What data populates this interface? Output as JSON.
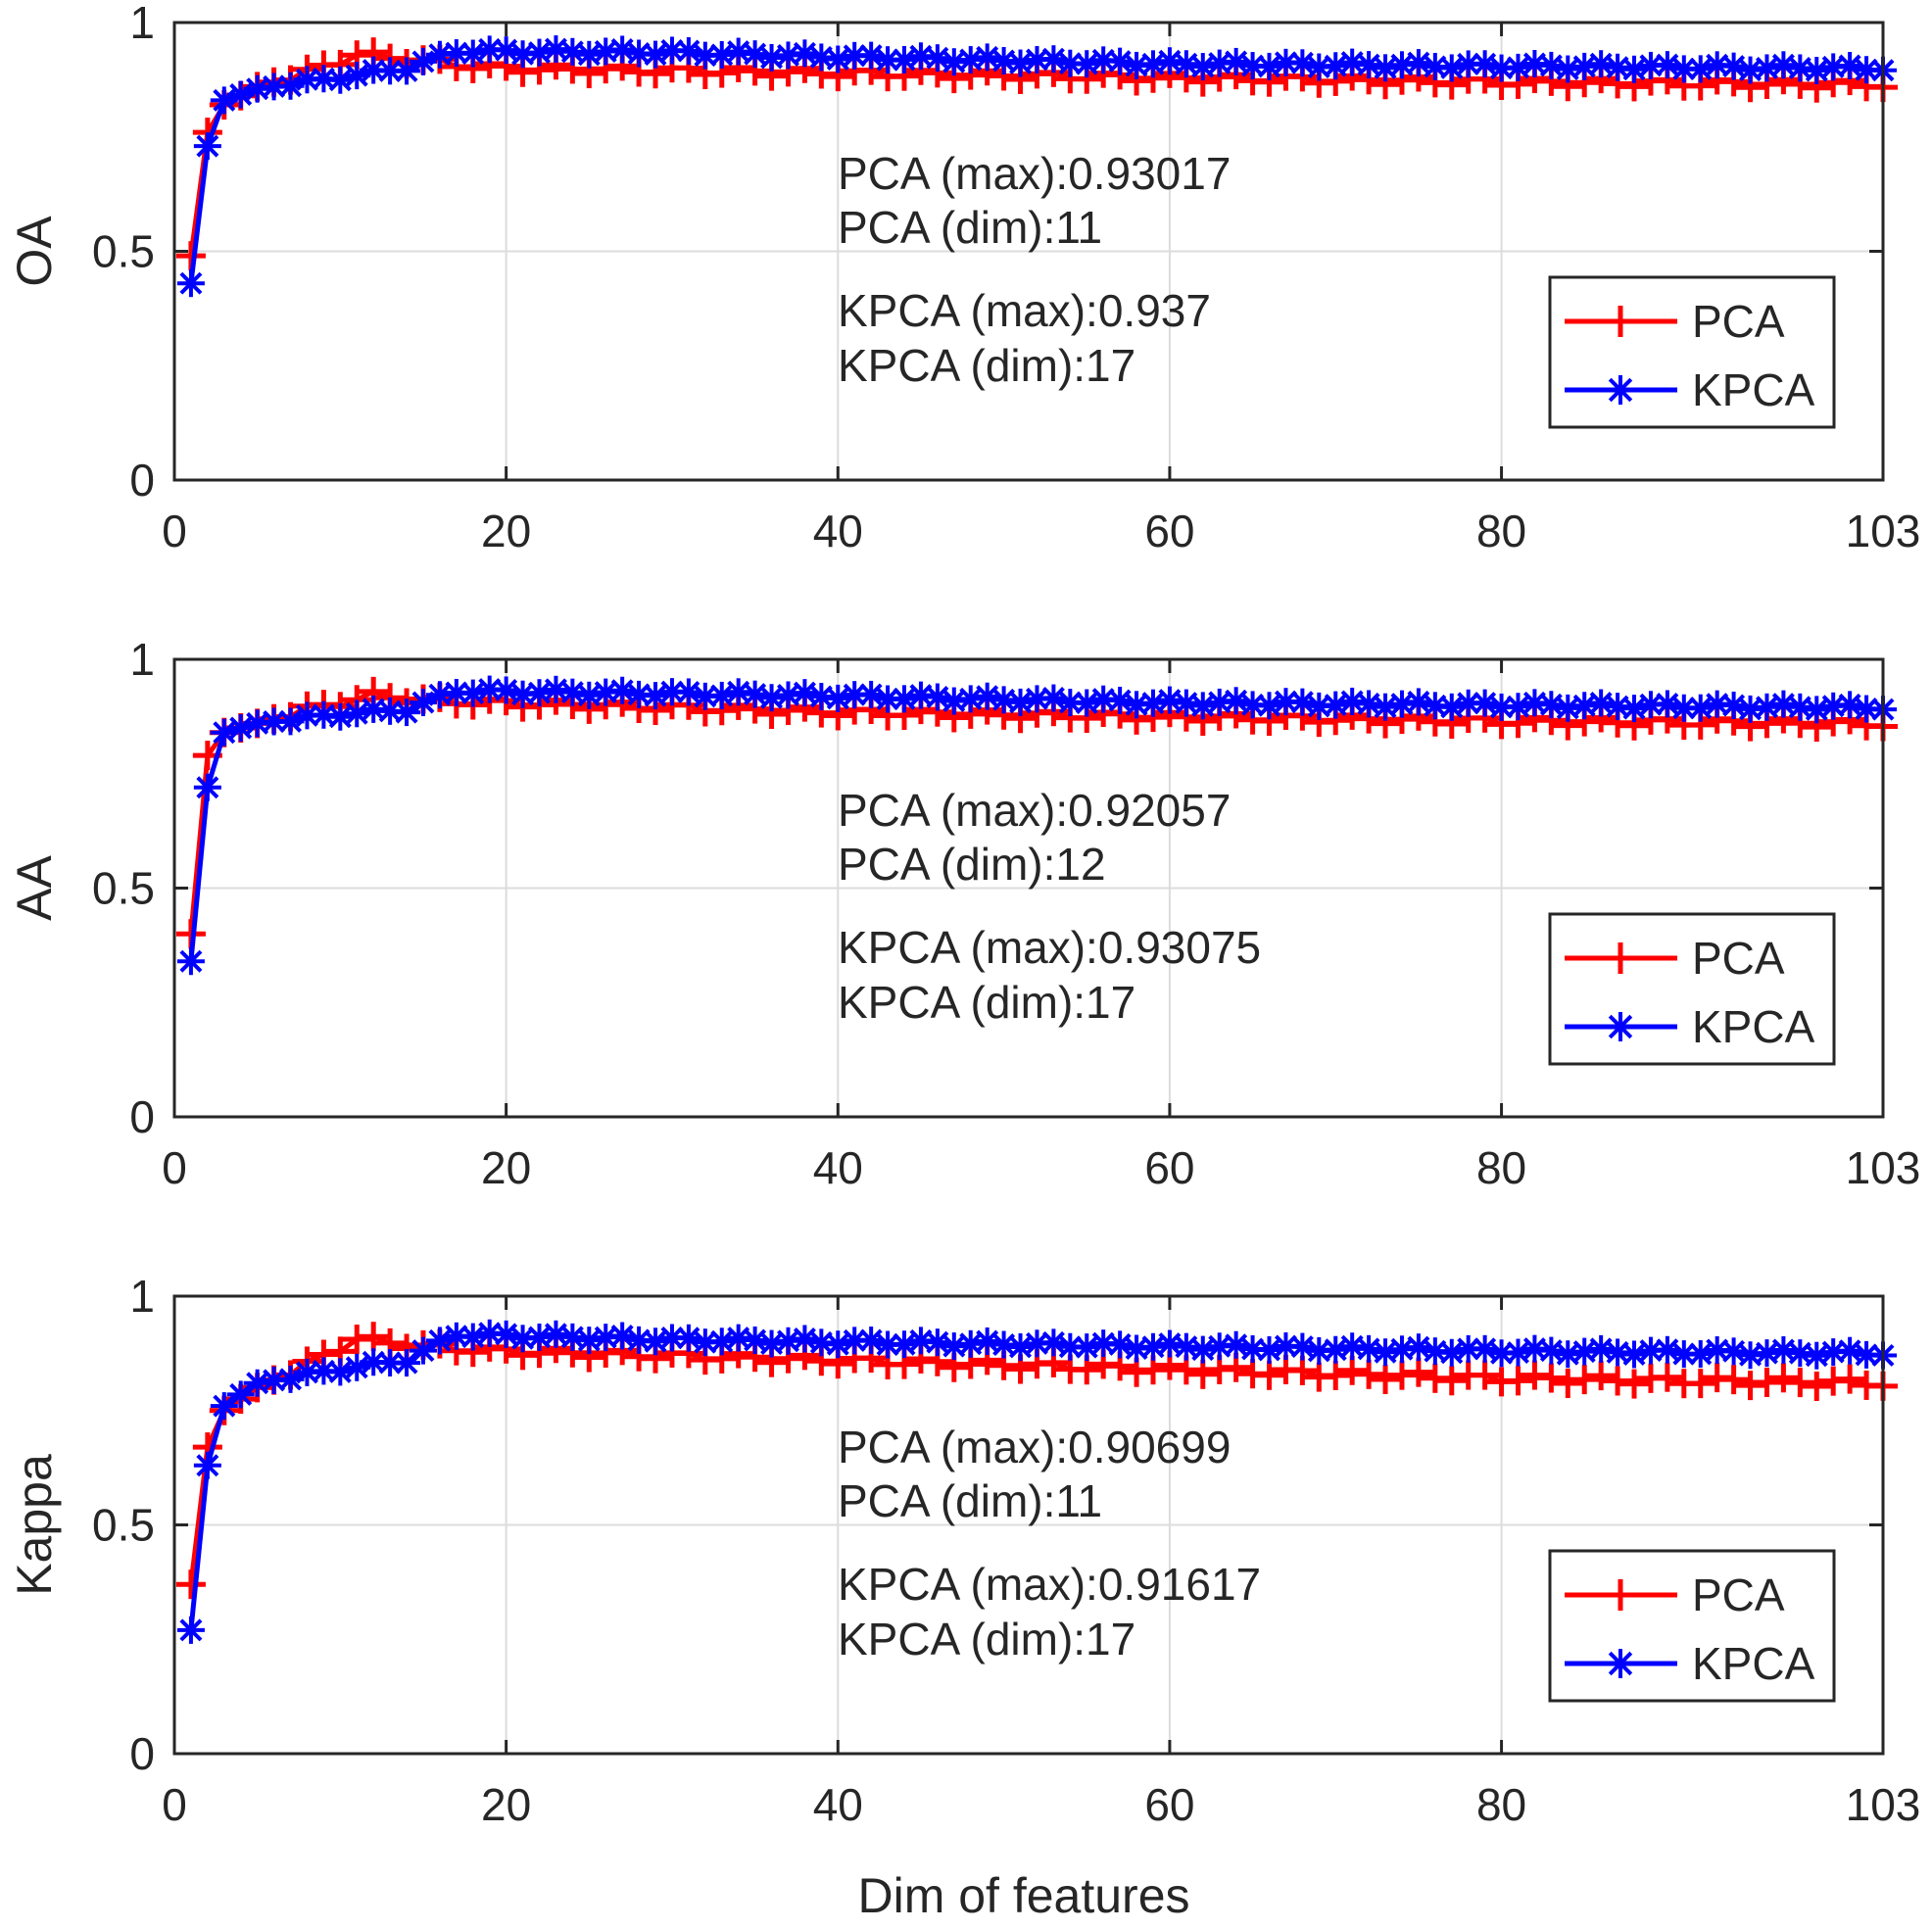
{
  "figure": {
    "xlabel": "Dim of features"
  },
  "colors": {
    "pca": "#ff0000",
    "kpca": "#0000ff",
    "grid": "#dcdcdc",
    "axis": "#262626"
  },
  "chart_data": [
    {
      "type": "line",
      "ylabel": "OA",
      "xlim": [
        0,
        103
      ],
      "ylim": [
        0,
        1
      ],
      "xticks": [
        0,
        20,
        40,
        60,
        80,
        103
      ],
      "yticks": [
        0,
        0.5,
        1
      ],
      "ytick_labels": [
        "0",
        "0.5",
        "1"
      ],
      "grid": true,
      "legend_position": "center-right",
      "annotations": [
        [
          "PCA (max):0.93017",
          "PCA (dim):11"
        ],
        [
          "KPCA (max):0.937",
          "KPCA (dim):17"
        ]
      ],
      "series": [
        {
          "name": "PCA",
          "marker": "plus",
          "keypoints": [
            [
              1,
              0.49
            ],
            [
              2,
              0.76
            ],
            [
              3,
              0.82
            ],
            [
              5,
              0.86
            ],
            [
              8,
              0.89
            ],
            [
              11,
              0.93017
            ],
            [
              15,
              0.915
            ],
            [
              20,
              0.9
            ],
            [
              40,
              0.89
            ],
            [
              60,
              0.88
            ],
            [
              80,
              0.87
            ],
            [
              103,
              0.865
            ]
          ]
        },
        {
          "name": "KPCA",
          "marker": "asterisk",
          "keypoints": [
            [
              1,
              0.43
            ],
            [
              2,
              0.73
            ],
            [
              3,
              0.83
            ],
            [
              5,
              0.855
            ],
            [
              10,
              0.88
            ],
            [
              14,
              0.9
            ],
            [
              17,
              0.937
            ],
            [
              30,
              0.935
            ],
            [
              40,
              0.925
            ],
            [
              60,
              0.91
            ],
            [
              80,
              0.905
            ],
            [
              103,
              0.9
            ]
          ]
        }
      ]
    },
    {
      "type": "line",
      "ylabel": "AA",
      "xlim": [
        0,
        103
      ],
      "ylim": [
        0,
        1
      ],
      "xticks": [
        0,
        20,
        40,
        60,
        80,
        103
      ],
      "yticks": [
        0,
        0.5,
        1
      ],
      "ytick_labels": [
        "0",
        "0.5",
        "1"
      ],
      "grid": true,
      "legend_position": "center-right",
      "annotations": [
        [
          "PCA (max):0.92057",
          "PCA (dim):12"
        ],
        [
          "KPCA (max):0.93075",
          "KPCA (dim):17"
        ]
      ],
      "series": [
        {
          "name": "PCA",
          "marker": "plus",
          "keypoints": [
            [
              1,
              0.4
            ],
            [
              2,
              0.79
            ],
            [
              3,
              0.84
            ],
            [
              5,
              0.86
            ],
            [
              8,
              0.89
            ],
            [
              12,
              0.92057
            ],
            [
              15,
              0.91
            ],
            [
              20,
              0.905
            ],
            [
              40,
              0.885
            ],
            [
              60,
              0.875
            ],
            [
              80,
              0.865
            ],
            [
              103,
              0.86
            ]
          ]
        },
        {
          "name": "KPCA",
          "marker": "asterisk",
          "keypoints": [
            [
              1,
              0.34
            ],
            [
              2,
              0.72
            ],
            [
              3,
              0.84
            ],
            [
              5,
              0.86
            ],
            [
              10,
              0.88
            ],
            [
              14,
              0.89
            ],
            [
              17,
              0.93075
            ],
            [
              30,
              0.925
            ],
            [
              40,
              0.92
            ],
            [
              60,
              0.905
            ],
            [
              80,
              0.9
            ],
            [
              103,
              0.895
            ]
          ]
        }
      ]
    },
    {
      "type": "line",
      "ylabel": "Kappa",
      "xlim": [
        0,
        103
      ],
      "ylim": [
        0,
        1
      ],
      "xticks": [
        0,
        20,
        40,
        60,
        80,
        103
      ],
      "yticks": [
        0,
        0.5,
        1
      ],
      "ytick_labels": [
        "0",
        "0.5",
        "1"
      ],
      "grid": true,
      "legend_position": "center-right",
      "annotations": [
        [
          "PCA (max):0.90699",
          "PCA (dim):11"
        ],
        [
          "KPCA (max):0.91617",
          "KPCA (dim):17"
        ]
      ],
      "series": [
        {
          "name": "PCA",
          "marker": "plus",
          "keypoints": [
            [
              1,
              0.37
            ],
            [
              2,
              0.67
            ],
            [
              3,
              0.75
            ],
            [
              5,
              0.8
            ],
            [
              8,
              0.85
            ],
            [
              11,
              0.90699
            ],
            [
              15,
              0.89
            ],
            [
              20,
              0.88
            ],
            [
              40,
              0.86
            ],
            [
              60,
              0.84
            ],
            [
              80,
              0.82
            ],
            [
              103,
              0.81
            ]
          ]
        },
        {
          "name": "KPCA",
          "marker": "asterisk",
          "keypoints": [
            [
              1,
              0.27
            ],
            [
              2,
              0.63
            ],
            [
              3,
              0.76
            ],
            [
              5,
              0.81
            ],
            [
              10,
              0.84
            ],
            [
              14,
              0.86
            ],
            [
              17,
              0.91617
            ],
            [
              30,
              0.905
            ],
            [
              40,
              0.9
            ],
            [
              60,
              0.89
            ],
            [
              80,
              0.88
            ],
            [
              103,
              0.875
            ]
          ]
        }
      ]
    }
  ]
}
